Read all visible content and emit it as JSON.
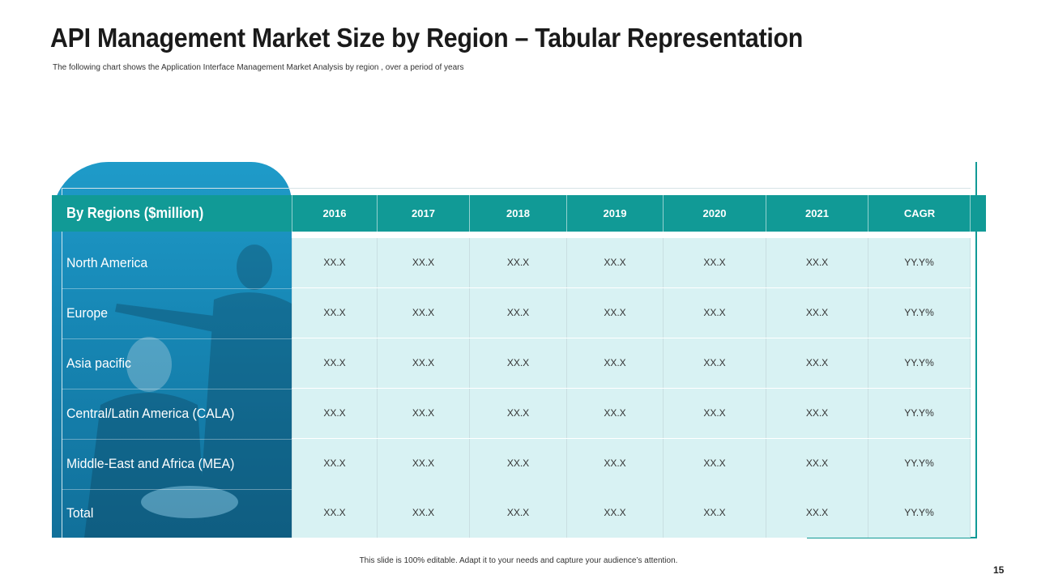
{
  "slide": {
    "title": "API Management Market Size by Region – Tabular Representation",
    "subtitle": "The following chart shows the Application  Interface Management Market Analysis  by region , over a period of years",
    "footer_note": "This slide is 100% editable. Adapt it to your needs and capture your audience’s attention.",
    "page_number": "15"
  },
  "colors": {
    "accent": "#119a96",
    "panel": "#1788b6",
    "cell_bg": "#d8f2f3"
  },
  "table": {
    "region_header": "By Regions ($million)",
    "columns": [
      "2016",
      "2017",
      "2018",
      "2019",
      "2020",
      "2021",
      "CAGR"
    ],
    "rows": [
      {
        "region": "North America",
        "values": [
          "XX.X",
          "XX.X",
          "XX.X",
          "XX.X",
          "XX.X",
          "XX.X",
          "YY.Y%"
        ]
      },
      {
        "region": "Europe",
        "values": [
          "XX.X",
          "XX.X",
          "XX.X",
          "XX.X",
          "XX.X",
          "XX.X",
          "YY.Y%"
        ]
      },
      {
        "region": "Asia pacific",
        "values": [
          "XX.X",
          "XX.X",
          "XX.X",
          "XX.X",
          "XX.X",
          "XX.X",
          "YY.Y%"
        ]
      },
      {
        "region": "Central/Latin America (CALA)",
        "values": [
          "XX.X",
          "XX.X",
          "XX.X",
          "XX.X",
          "XX.X",
          "XX.X",
          "YY.Y%"
        ]
      },
      {
        "region": "Middle-East and Africa (MEA)",
        "values": [
          "XX.X",
          "XX.X",
          "XX.X",
          "XX.X",
          "XX.X",
          "XX.X",
          "YY.Y%"
        ]
      },
      {
        "region": "Total",
        "values": [
          "XX.X",
          "XX.X",
          "XX.X",
          "XX.X",
          "XX.X",
          "XX.X",
          "YY.Y%"
        ]
      }
    ]
  }
}
